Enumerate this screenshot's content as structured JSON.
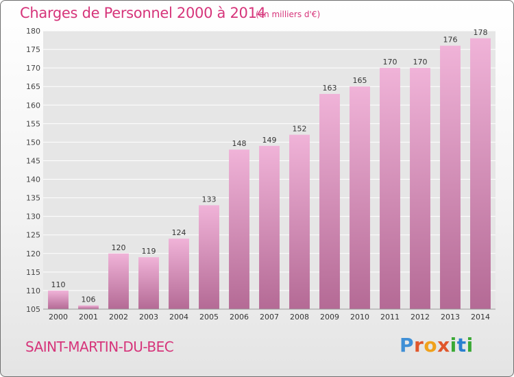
{
  "header": {
    "title": "Charges de Personnel 2000 à 2014",
    "subtitle": "(en milliers d'€)"
  },
  "footer": {
    "commune": "SAINT-MARTIN-DU-BEC",
    "logo": "Proxiti",
    "logo_colors": [
      "#3f8fd6",
      "#e0562b",
      "#f0a11c",
      "#e0562b",
      "#3aa935",
      "#2a7fd0",
      "#3aa935"
    ]
  },
  "colors": {
    "title": "#d6347a",
    "bar_light": "#f0b3d8",
    "bar_dark": "#b46a95",
    "plot_bg": "#e6e6e6",
    "grid": "#ffffff"
  },
  "chart_data": {
    "type": "bar",
    "title": "Charges de Personnel 2000 à 2014",
    "subtitle": "(en milliers d'€)",
    "categories": [
      "2000",
      "2001",
      "2002",
      "2003",
      "2004",
      "2005",
      "2006",
      "2007",
      "2008",
      "2009",
      "2010",
      "2011",
      "2012",
      "2013",
      "2014"
    ],
    "values": [
      110,
      106,
      120,
      119,
      124,
      133,
      148,
      149,
      152,
      163,
      165,
      170,
      170,
      176,
      178
    ],
    "xlabel": "",
    "ylabel": "",
    "ylim": [
      105,
      180
    ],
    "yticks": [
      105,
      110,
      115,
      120,
      125,
      130,
      135,
      140,
      145,
      150,
      155,
      160,
      165,
      170,
      175,
      180
    ],
    "grid": true,
    "data_labels": true
  }
}
